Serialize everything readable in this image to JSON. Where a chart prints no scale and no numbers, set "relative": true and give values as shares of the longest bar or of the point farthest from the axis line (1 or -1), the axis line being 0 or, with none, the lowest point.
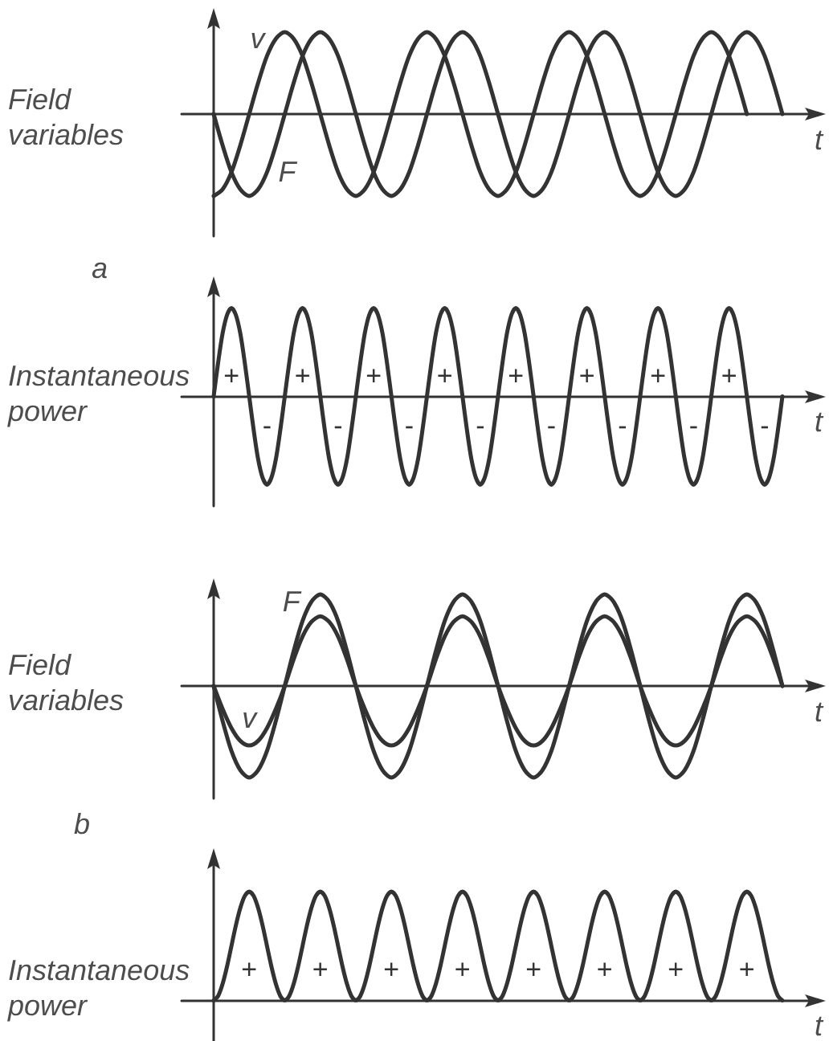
{
  "chart_data": [
    {
      "type": "line",
      "relative": true,
      "title": "a",
      "ylabel": "Field variables",
      "xlabel": "t",
      "categories": [
        null,
        null,
        null,
        null,
        null,
        null,
        null,
        null,
        null,
        null,
        null,
        null,
        null,
        null,
        null,
        null,
        null,
        null,
        null,
        null,
        null,
        null,
        null,
        null,
        null,
        null,
        null,
        null,
        null,
        null,
        null,
        null,
        null,
        null,
        null,
        null,
        null,
        null,
        null,
        null,
        null,
        null,
        null,
        null,
        null,
        null,
        null,
        null,
        null,
        null,
        null,
        null,
        null,
        null,
        null,
        null,
        null,
        null,
        null,
        null,
        null,
        null,
        null,
        null,
        null
      ],
      "series": [
        {
          "name": "v",
          "color": "#333333",
          "values": [
            -1,
            -0.92,
            -0.71,
            -0.38,
            0,
            0.38,
            0.71,
            0.92,
            1,
            0.92,
            0.71,
            0.38,
            0,
            -0.38,
            -0.71,
            -0.92,
            -1,
            -0.92,
            -0.71,
            -0.38,
            0,
            0.38,
            0.71,
            0.92,
            1,
            0.92,
            0.71,
            0.38,
            0,
            -0.38,
            -0.71,
            -0.92,
            -1,
            -0.92,
            -0.71,
            -0.38,
            0,
            0.38,
            0.71,
            0.92,
            1,
            0.92,
            0.71,
            0.38,
            0,
            -0.38,
            -0.71,
            -0.92,
            -1,
            -0.92,
            -0.71,
            -0.38,
            0,
            0.38,
            0.71,
            0.92,
            1,
            0.92,
            0.71,
            0.38,
            0,
            null,
            null,
            null,
            null
          ]
        },
        {
          "name": "F",
          "color": "#333333",
          "values": [
            0,
            -0.38,
            -0.71,
            -0.92,
            -1,
            -0.92,
            -0.71,
            -0.38,
            0,
            0.38,
            0.71,
            0.92,
            1,
            0.92,
            0.71,
            0.38,
            0,
            -0.38,
            -0.71,
            -0.92,
            -1,
            -0.92,
            -0.71,
            -0.38,
            0,
            0.38,
            0.71,
            0.92,
            1,
            0.92,
            0.71,
            0.38,
            0,
            -0.38,
            -0.71,
            -0.92,
            -1,
            -0.92,
            -0.71,
            -0.38,
            0,
            0.38,
            0.71,
            0.92,
            1,
            0.92,
            0.71,
            0.38,
            0,
            -0.38,
            -0.71,
            -0.92,
            -1,
            -0.92,
            -0.71,
            -0.38,
            0,
            0.38,
            0.71,
            0.92,
            1,
            0.92,
            0.71,
            0.38,
            0
          ]
        }
      ]
    },
    {
      "type": "line",
      "relative": true,
      "ylabel": "Instantaneous power",
      "xlabel": "t",
      "annotations": [
        "+",
        "-",
        "+",
        "-",
        "+",
        "-",
        "+",
        "-",
        "+",
        "-",
        "+",
        "-",
        "+",
        "-",
        "+",
        "-"
      ],
      "categories": [
        null,
        null,
        null,
        null,
        null,
        null,
        null,
        null,
        null,
        null,
        null,
        null,
        null,
        null,
        null,
        null,
        null,
        null,
        null,
        null,
        null,
        null,
        null,
        null,
        null,
        null,
        null,
        null,
        null,
        null,
        null,
        null,
        null,
        null,
        null,
        null,
        null,
        null,
        null,
        null,
        null,
        null,
        null,
        null,
        null,
        null,
        null,
        null,
        null,
        null,
        null,
        null,
        null,
        null,
        null,
        null,
        null,
        null,
        null,
        null,
        null,
        null,
        null,
        null,
        null,
        null,
        null,
        null,
        null,
        null,
        null,
        null,
        null,
        null,
        null,
        null,
        null,
        null,
        null,
        null,
        null,
        null,
        null,
        null,
        null,
        null,
        null,
        null,
        null,
        null,
        null,
        null,
        null,
        null,
        null,
        null,
        null,
        null,
        null,
        null,
        null,
        null,
        null,
        null,
        null,
        null,
        null,
        null,
        null,
        null,
        null,
        null,
        null,
        null,
        null,
        null,
        null,
        null,
        null,
        null,
        null,
        null,
        null,
        null,
        null,
        null,
        null,
        null,
        null
      ],
      "series": [
        {
          "color": "#333333",
          "values": [
            0,
            0.38,
            0.71,
            0.92,
            1,
            0.92,
            0.71,
            0.38,
            0,
            -0.38,
            -0.71,
            -0.92,
            -1,
            -0.92,
            -0.71,
            -0.38,
            0,
            0.38,
            0.71,
            0.92,
            1,
            0.92,
            0.71,
            0.38,
            0,
            -0.38,
            -0.71,
            -0.92,
            -1,
            -0.92,
            -0.71,
            -0.38,
            0,
            0.38,
            0.71,
            0.92,
            1,
            0.92,
            0.71,
            0.38,
            0,
            -0.38,
            -0.71,
            -0.92,
            -1,
            -0.92,
            -0.71,
            -0.38,
            0,
            0.38,
            0.71,
            0.92,
            1,
            0.92,
            0.71,
            0.38,
            0,
            -0.38,
            -0.71,
            -0.92,
            -1,
            -0.92,
            -0.71,
            -0.38,
            0,
            0.38,
            0.71,
            0.92,
            1,
            0.92,
            0.71,
            0.38,
            0,
            -0.38,
            -0.71,
            -0.92,
            -1,
            -0.92,
            -0.71,
            -0.38,
            0,
            0.38,
            0.71,
            0.92,
            1,
            0.92,
            0.71,
            0.38,
            0,
            -0.38,
            -0.71,
            -0.92,
            -1,
            -0.92,
            -0.71,
            -0.38,
            0,
            0.38,
            0.71,
            0.92,
            1,
            0.92,
            0.71,
            0.38,
            0,
            -0.38,
            -0.71,
            -0.92,
            -1,
            -0.92,
            -0.71,
            -0.38,
            0,
            0.38,
            0.71,
            0.92,
            1,
            0.92,
            0.71,
            0.38,
            0,
            -0.38,
            -0.71,
            -0.92,
            -1,
            -0.92,
            -0.71,
            -0.38,
            0
          ]
        }
      ]
    },
    {
      "type": "line",
      "relative": true,
      "title": "b",
      "ylabel": "Field variables",
      "xlabel": "t",
      "categories": [
        null,
        null,
        null,
        null,
        null,
        null,
        null,
        null,
        null,
        null,
        null,
        null,
        null,
        null,
        null,
        null,
        null,
        null,
        null,
        null,
        null,
        null,
        null,
        null,
        null,
        null,
        null,
        null,
        null,
        null,
        null,
        null,
        null,
        null,
        null,
        null,
        null,
        null,
        null,
        null,
        null,
        null,
        null,
        null,
        null,
        null,
        null,
        null,
        null,
        null,
        null,
        null,
        null,
        null,
        null,
        null,
        null,
        null,
        null,
        null,
        null,
        null,
        null,
        null,
        null
      ],
      "series": [
        {
          "name": "v",
          "color": "#333333",
          "values": [
            0,
            -0.25,
            -0.46,
            -0.6,
            -0.65,
            -0.6,
            -0.46,
            -0.25,
            0,
            0.29,
            0.54,
            0.7,
            0.76,
            0.7,
            0.54,
            0.29,
            0,
            -0.25,
            -0.46,
            -0.6,
            -0.65,
            -0.6,
            -0.46,
            -0.25,
            0,
            0.29,
            0.54,
            0.7,
            0.76,
            0.7,
            0.54,
            0.29,
            0,
            -0.25,
            -0.46,
            -0.6,
            -0.65,
            -0.6,
            -0.46,
            -0.25,
            0,
            0.29,
            0.54,
            0.7,
            0.76,
            0.7,
            0.54,
            0.29,
            0,
            -0.25,
            -0.46,
            -0.6,
            -0.65,
            -0.6,
            -0.46,
            -0.25,
            0,
            0.29,
            0.54,
            0.7,
            0.76,
            0.7,
            0.54,
            0.29,
            0
          ]
        },
        {
          "name": "F",
          "color": "#333333",
          "values": [
            0,
            -0.38,
            -0.71,
            -0.92,
            -1,
            -0.92,
            -0.71,
            -0.38,
            0,
            0.38,
            0.71,
            0.92,
            1,
            0.92,
            0.71,
            0.38,
            0,
            -0.38,
            -0.71,
            -0.92,
            -1,
            -0.92,
            -0.71,
            -0.38,
            0,
            0.38,
            0.71,
            0.92,
            1,
            0.92,
            0.71,
            0.38,
            0,
            -0.38,
            -0.71,
            -0.92,
            -1,
            -0.92,
            -0.71,
            -0.38,
            0,
            0.38,
            0.71,
            0.92,
            1,
            0.92,
            0.71,
            0.38,
            0,
            -0.38,
            -0.71,
            -0.92,
            -1,
            -0.92,
            -0.71,
            -0.38,
            0,
            0.38,
            0.71,
            0.92,
            1,
            0.92,
            0.71,
            0.38,
            0
          ]
        }
      ]
    },
    {
      "type": "line",
      "relative": true,
      "ylabel": "Instantaneous power",
      "xlabel": "t",
      "annotations": [
        "+",
        "+",
        "+",
        "+",
        "+",
        "+",
        "+",
        "+"
      ],
      "categories": [
        null,
        null,
        null,
        null,
        null,
        null,
        null,
        null,
        null,
        null,
        null,
        null,
        null,
        null,
        null,
        null,
        null,
        null,
        null,
        null,
        null,
        null,
        null,
        null,
        null,
        null,
        null,
        null,
        null,
        null,
        null,
        null,
        null,
        null,
        null,
        null,
        null,
        null,
        null,
        null,
        null,
        null,
        null,
        null,
        null,
        null,
        null,
        null,
        null,
        null,
        null,
        null,
        null,
        null,
        null,
        null,
        null,
        null,
        null,
        null,
        null,
        null,
        null,
        null,
        null,
        null,
        null,
        null,
        null,
        null,
        null,
        null,
        null,
        null,
        null,
        null,
        null,
        null,
        null,
        null,
        null,
        null,
        null,
        null,
        null,
        null,
        null,
        null,
        null,
        null,
        null,
        null,
        null,
        null,
        null,
        null,
        null,
        null,
        null,
        null,
        null,
        null,
        null,
        null,
        null,
        null,
        null,
        null,
        null,
        null,
        null,
        null,
        null,
        null,
        null,
        null,
        null,
        null,
        null,
        null,
        null,
        null,
        null,
        null,
        null,
        null,
        null,
        null,
        null
      ],
      "series": [
        {
          "color": "#333333",
          "values": [
            0,
            0.04,
            0.15,
            0.31,
            0.5,
            0.69,
            0.85,
            0.96,
            1,
            0.96,
            0.85,
            0.69,
            0.5,
            0.31,
            0.15,
            0.04,
            0,
            0.04,
            0.15,
            0.31,
            0.5,
            0.69,
            0.85,
            0.96,
            1,
            0.96,
            0.85,
            0.69,
            0.5,
            0.31,
            0.15,
            0.04,
            0,
            0.04,
            0.15,
            0.31,
            0.5,
            0.69,
            0.85,
            0.96,
            1,
            0.96,
            0.85,
            0.69,
            0.5,
            0.31,
            0.15,
            0.04,
            0,
            0.04,
            0.15,
            0.31,
            0.5,
            0.69,
            0.85,
            0.96,
            1,
            0.96,
            0.85,
            0.69,
            0.5,
            0.31,
            0.15,
            0.04,
            0,
            0.04,
            0.15,
            0.31,
            0.5,
            0.69,
            0.85,
            0.96,
            1,
            0.96,
            0.85,
            0.69,
            0.5,
            0.31,
            0.15,
            0.04,
            0,
            0.04,
            0.15,
            0.31,
            0.5,
            0.69,
            0.85,
            0.96,
            1,
            0.96,
            0.85,
            0.69,
            0.5,
            0.31,
            0.15,
            0.04,
            0,
            0.04,
            0.15,
            0.31,
            0.5,
            0.69,
            0.85,
            0.96,
            1,
            0.96,
            0.85,
            0.69,
            0.5,
            0.31,
            0.15,
            0.04,
            0,
            0.04,
            0.15,
            0.31,
            0.5,
            0.69,
            0.85,
            0.96,
            1,
            0.96,
            0.85,
            0.69,
            0.5,
            0.31,
            0.15,
            0.04,
            0
          ]
        }
      ]
    }
  ]
}
